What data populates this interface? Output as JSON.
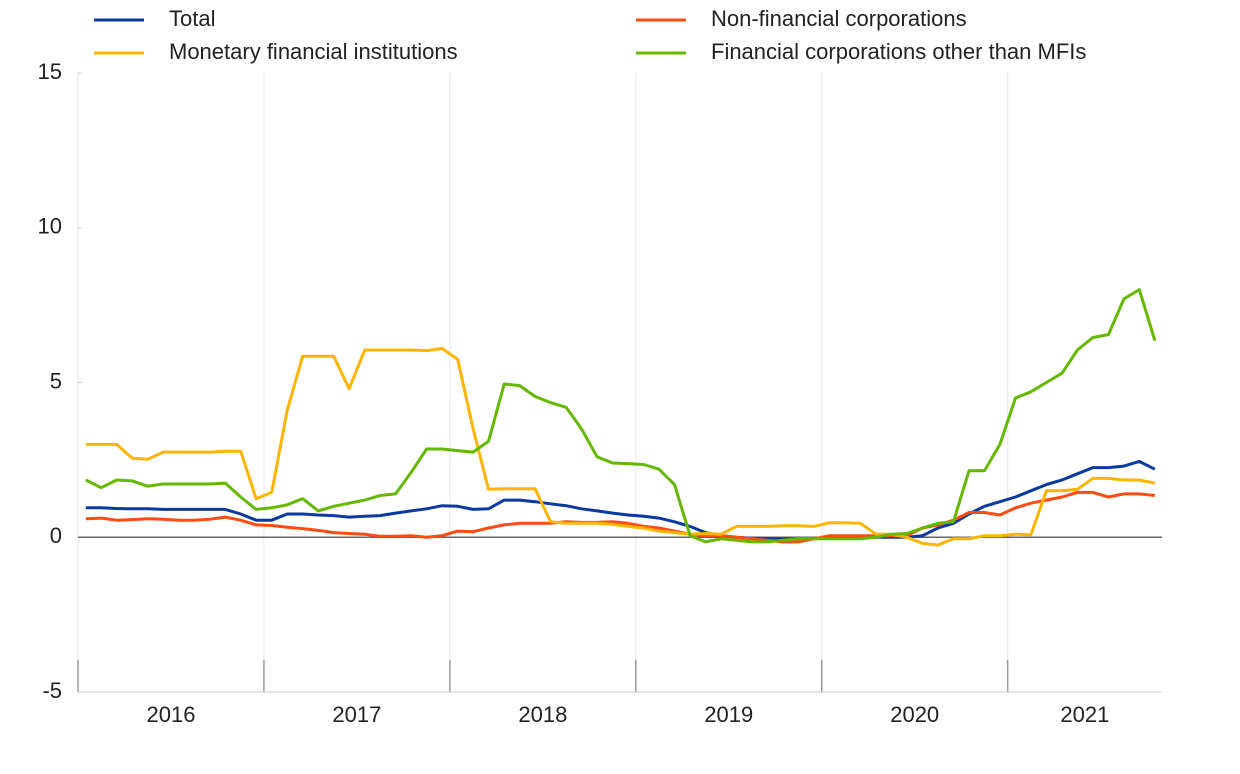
{
  "chart_data": {
    "type": "line",
    "x": [
      2016.042,
      2016.125,
      2016.208,
      2016.292,
      2016.375,
      2016.458,
      2016.542,
      2016.625,
      2016.708,
      2016.792,
      2016.875,
      2016.958,
      2017.042,
      2017.125,
      2017.208,
      2017.292,
      2017.375,
      2017.458,
      2017.542,
      2017.625,
      2017.708,
      2017.792,
      2017.875,
      2017.958,
      2018.042,
      2018.125,
      2018.208,
      2018.292,
      2018.375,
      2018.458,
      2018.542,
      2018.625,
      2018.708,
      2018.792,
      2018.875,
      2018.958,
      2019.042,
      2019.125,
      2019.208,
      2019.292,
      2019.375,
      2019.458,
      2019.542,
      2019.625,
      2019.708,
      2019.792,
      2019.875,
      2019.958,
      2020.042,
      2020.125,
      2020.208,
      2020.292,
      2020.375,
      2020.458,
      2020.542,
      2020.625,
      2020.708,
      2020.792,
      2020.875,
      2020.958,
      2021.042,
      2021.125,
      2021.208,
      2021.292,
      2021.375,
      2021.458,
      2021.542,
      2021.625,
      2021.708,
      2021.792
    ],
    "series": [
      {
        "name": "Total",
        "color": "#0a3aa0",
        "values": [
          0.95,
          0.95,
          0.93,
          0.92,
          0.92,
          0.9,
          0.9,
          0.9,
          0.9,
          0.9,
          0.75,
          0.55,
          0.55,
          0.75,
          0.75,
          0.72,
          0.7,
          0.65,
          0.68,
          0.7,
          0.78,
          0.85,
          0.92,
          1.02,
          1.0,
          0.9,
          0.92,
          1.2,
          1.2,
          1.15,
          1.08,
          1.02,
          0.92,
          0.85,
          0.78,
          0.72,
          0.68,
          0.62,
          0.5,
          0.35,
          0.15,
          0.05,
          0,
          -0.03,
          -0.05,
          -0.05,
          -0.05,
          -0.05,
          0,
          0,
          0,
          0,
          0,
          0,
          0.05,
          0.3,
          0.45,
          0.75,
          1.0,
          1.15,
          1.3,
          1.5,
          1.7,
          1.85,
          2.05,
          2.25,
          2.25,
          2.3,
          2.45,
          2.2
        ]
      },
      {
        "name": "Non-financial corporations",
        "color": "#ff4b0f",
        "values": [
          0.6,
          0.62,
          0.55,
          0.57,
          0.6,
          0.58,
          0.55,
          0.55,
          0.58,
          0.65,
          0.55,
          0.4,
          0.38,
          0.32,
          0.28,
          0.22,
          0.15,
          0.12,
          0.1,
          0.03,
          0.03,
          0.05,
          0,
          0.05,
          0.2,
          0.18,
          0.3,
          0.4,
          0.45,
          0.45,
          0.45,
          0.5,
          0.48,
          0.48,
          0.5,
          0.45,
          0.35,
          0.3,
          0.2,
          0.1,
          0.05,
          0.05,
          0,
          -0.05,
          -0.1,
          -0.15,
          -0.15,
          -0.05,
          0.05,
          0.05,
          0.05,
          0.05,
          0.05,
          0.05,
          0.3,
          0.4,
          0.55,
          0.8,
          0.8,
          0.72,
          0.95,
          1.1,
          1.2,
          1.3,
          1.45,
          1.45,
          1.3,
          1.4,
          1.4,
          1.35
        ]
      },
      {
        "name": "Monetary financial institutions",
        "color": "#ffb400",
        "values": [
          3.0,
          3.0,
          3.0,
          2.55,
          2.52,
          2.75,
          2.75,
          2.75,
          2.75,
          2.78,
          2.78,
          1.25,
          1.45,
          4.1,
          5.85,
          5.85,
          5.85,
          4.8,
          6.05,
          6.05,
          6.05,
          6.05,
          6.03,
          6.1,
          5.75,
          3.5,
          1.55,
          1.57,
          1.57,
          1.57,
          0.5,
          0.45,
          0.45,
          0.45,
          0.42,
          0.35,
          0.3,
          0.2,
          0.15,
          0.1,
          0.12,
          0.1,
          0.35,
          0.35,
          0.35,
          0.37,
          0.37,
          0.35,
          0.47,
          0.47,
          0.45,
          0.1,
          0.1,
          0.0,
          -0.2,
          -0.25,
          -0.05,
          -0.05,
          0.05,
          0.05,
          0.1,
          0.08,
          1.5,
          1.5,
          1.55,
          1.9,
          1.9,
          1.85,
          1.85,
          1.75
        ]
      },
      {
        "name": "Financial corporations other than MFIs",
        "color": "#65b800",
        "values": [
          1.85,
          1.6,
          1.85,
          1.82,
          1.65,
          1.72,
          1.72,
          1.72,
          1.72,
          1.75,
          1.3,
          0.9,
          0.95,
          1.05,
          1.25,
          0.85,
          1.0,
          1.1,
          1.2,
          1.35,
          1.4,
          2.1,
          2.85,
          2.85,
          2.8,
          2.75,
          3.1,
          4.95,
          4.9,
          4.55,
          4.35,
          4.2,
          3.5,
          2.6,
          2.4,
          2.38,
          2.35,
          2.2,
          1.7,
          0.05,
          -0.15,
          -0.05,
          -0.1,
          -0.15,
          -0.15,
          -0.1,
          -0.05,
          -0.05,
          -0.05,
          -0.05,
          -0.05,
          0,
          0.1,
          0.12,
          0.3,
          0.45,
          0.5,
          2.15,
          2.15,
          3.0,
          4.5,
          4.7,
          5.0,
          5.3,
          6.05,
          6.45,
          6.55,
          7.7,
          8.0,
          6.35
        ]
      }
    ],
    "xlim": [
      2016,
      2021.83
    ],
    "xticks": [
      2016,
      2017,
      2018,
      2019,
      2020,
      2021
    ],
    "ylim": [
      -5,
      15
    ],
    "yticks": [
      -5,
      0,
      5,
      10,
      15
    ],
    "grid": true
  }
}
